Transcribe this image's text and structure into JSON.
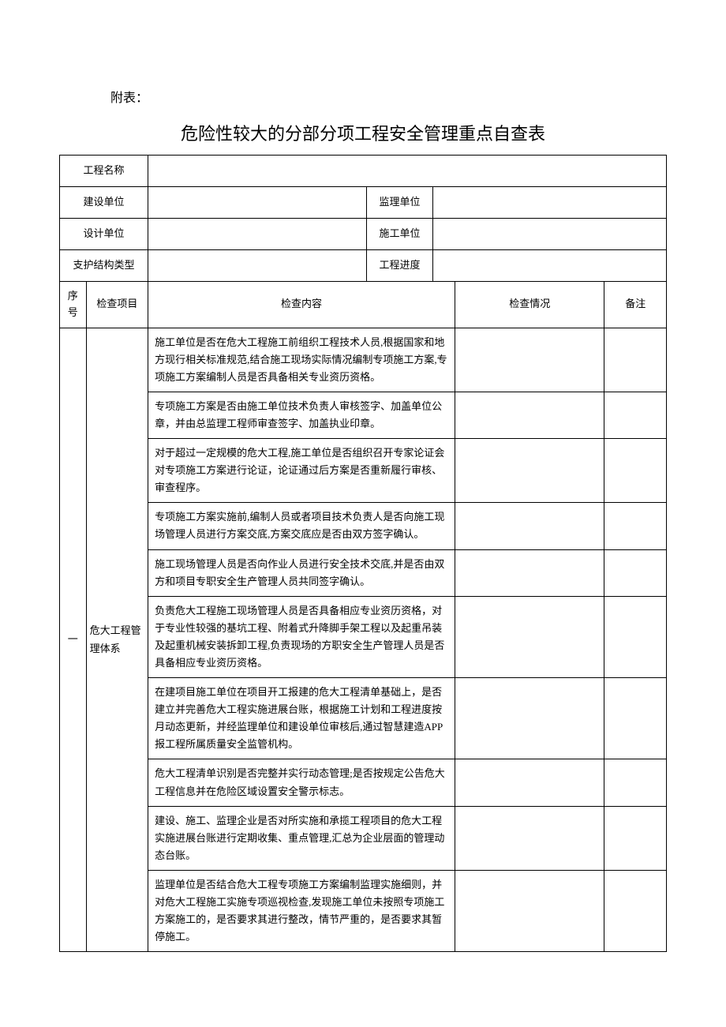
{
  "prefix": "附表：",
  "title": "危险性较大的分部分项工程安全管理重点自查表",
  "info": {
    "row1": {
      "label": "工程名称"
    },
    "row2": {
      "label1": "建设单位",
      "label2": "监理单位"
    },
    "row3": {
      "label1": "设计单位",
      "label2": "施工单位"
    },
    "row4": {
      "label1": "支护结构类型",
      "label2": "工程进度"
    }
  },
  "headers": {
    "seq": "序号",
    "item": "检查项目",
    "content": "检查内容",
    "status": "检查情况",
    "remark": "备注"
  },
  "section": {
    "seq": "一",
    "item": "危大工程管理体系",
    "rows": [
      "施工单位是否在危大工程施工前组织工程技术人员,根据国家和地方现行相关标准规范,结合施工现场实际情况编制专项施工方案,专项施工方案编制人员是否具备相关专业资历资格。",
      "专项施工方案是否由施工单位技术负责人审核签字、加盖单位公章，并由总监理工程师审查签字、加盖执业印章。",
      "对于超过一定规模的危大工程,施工单位是否组织召开专家论证会对专项施工方案进行论证，论证通过后方案是否重新履行审核、审查程序。",
      "专项施工方案实施前,编制人员或者项目技术负责人是否向施工现场管理人员进行方案交底,方案交底应是否由双方签字确认。",
      "施工现场管理人员是否向作业人员进行安全技术交底,并是否由双方和项目专职安全生产管理人员共同签字确认。",
      "负责危大工程施工现场管理人员是否具备相应专业资历资格，对于专业性较强的基坑工程、附着式升降脚手架工程以及起重吊装及起重机械安装拆卸工程,负责现场的方职安全生产管理人员是否具备相应专业资历资格。",
      "在建项目施工单位在项目开工报建的危大工程清单基础上，是否建立并完善危大工程实施进展台账，根据施工计划和工程进度按月动态更新，并经监理单位和建设单位审核后,通过智慧建造APP报工程所属质量安全监管机构。",
      "危大工程清单识别是否完整并实行动态管理;是否按规定公告危大工程信息并在危险区域设置安全警示标志。",
      "建设、施工、监理企业是否对所实施和承揽工程项目的危大工程实施进展台账进行定期收集、重点管理,汇总为企业层面的管理动态台账。",
      "监理单位是否结合危大工程专项施工方案编制监理实施细则，并对危大工程施工实施专项巡视检查,发现施工单位未按照专项施工方案施工的，是否要求其进行整改，情节严重的，是否要求其暂停施工。"
    ]
  }
}
